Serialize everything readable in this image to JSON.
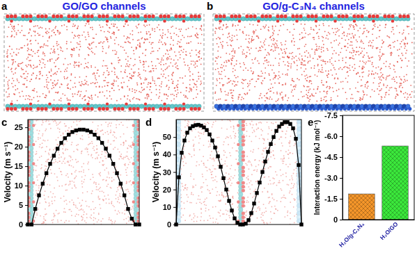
{
  "chart_data": [
    {
      "type": "diagram",
      "panel_label": "a",
      "title": "GO/GO channels"
    },
    {
      "type": "diagram",
      "panel_label": "b",
      "title": "GO/g-C₃N₄ channels"
    },
    {
      "type": "line",
      "panel_label": "c",
      "ylabel": "Velocity (m s⁻¹)",
      "x": [
        0,
        1,
        2,
        3,
        4,
        5,
        6,
        7,
        8,
        9,
        10,
        11,
        12,
        13,
        14,
        15,
        16,
        17,
        18,
        19,
        20,
        21,
        22,
        23,
        24,
        25,
        26,
        27,
        28,
        29,
        30
      ],
      "values": [
        0,
        0,
        4,
        7.5,
        10.5,
        13.2,
        15.6,
        17.7,
        19.5,
        21,
        22.2,
        23.1,
        23.8,
        24.2,
        24.4,
        24.4,
        24.2,
        23.8,
        23.1,
        22.2,
        21,
        19.5,
        17.7,
        15.6,
        13.2,
        10.5,
        7.5,
        4,
        1.5,
        0,
        0
      ],
      "color": "#000000",
      "marker": "square",
      "xlim": [
        0,
        30
      ],
      "ylim": [
        0,
        27
      ],
      "yticks": [
        0,
        5,
        10,
        15,
        20,
        25
      ],
      "tick_labels": "y"
    },
    {
      "type": "line",
      "panel_label": "d",
      "ylabel": "Velocity (m s⁻¹)",
      "x": [
        0,
        1,
        2,
        3,
        4,
        5,
        6,
        7,
        8,
        9,
        10,
        11,
        12,
        13,
        14,
        15,
        16,
        17,
        18,
        19,
        20,
        21,
        22,
        23,
        24,
        25,
        26,
        27,
        28,
        29,
        30,
        31,
        32,
        33,
        34,
        35,
        36,
        37,
        38,
        39,
        40,
        41,
        42,
        43,
        44,
        45
      ],
      "values": [
        0,
        27,
        41,
        48,
        52.5,
        55,
        56.2,
        56.8,
        57,
        56.5,
        55.5,
        54,
        51.5,
        48,
        44,
        39,
        33,
        26.5,
        20,
        13.5,
        8,
        3.5,
        1,
        0,
        0,
        0.5,
        2.5,
        6.5,
        12,
        18,
        24,
        30,
        36,
        41.5,
        46,
        50,
        53.5,
        56,
        57.5,
        58.5,
        58.5,
        57.5,
        55,
        49,
        34,
        0
      ],
      "color": "#000000",
      "marker": "square",
      "xlim": [
        0,
        45
      ],
      "ylim": [
        0,
        60
      ],
      "yticks": [
        0,
        10,
        20,
        30,
        40,
        50
      ],
      "tick_labels": "y"
    },
    {
      "type": "bar",
      "panel_label": "e",
      "ylabel": "Interaction energy (kJ mol⁻¹)",
      "categories": [
        "H₂O/g-C₃N₄",
        "H₂O/GO"
      ],
      "values": [
        -1.85,
        -5.3
      ],
      "colors": [
        "#f5962a",
        "#3be83b"
      ],
      "ylim": [
        0,
        -7.5
      ],
      "yticks": [
        0,
        -1.5,
        {
          "value": -3,
          "label": "-3.0"
        },
        -4.5,
        {
          "value": -6,
          "label": "-6.0"
        },
        -7.5
      ]
    }
  ]
}
